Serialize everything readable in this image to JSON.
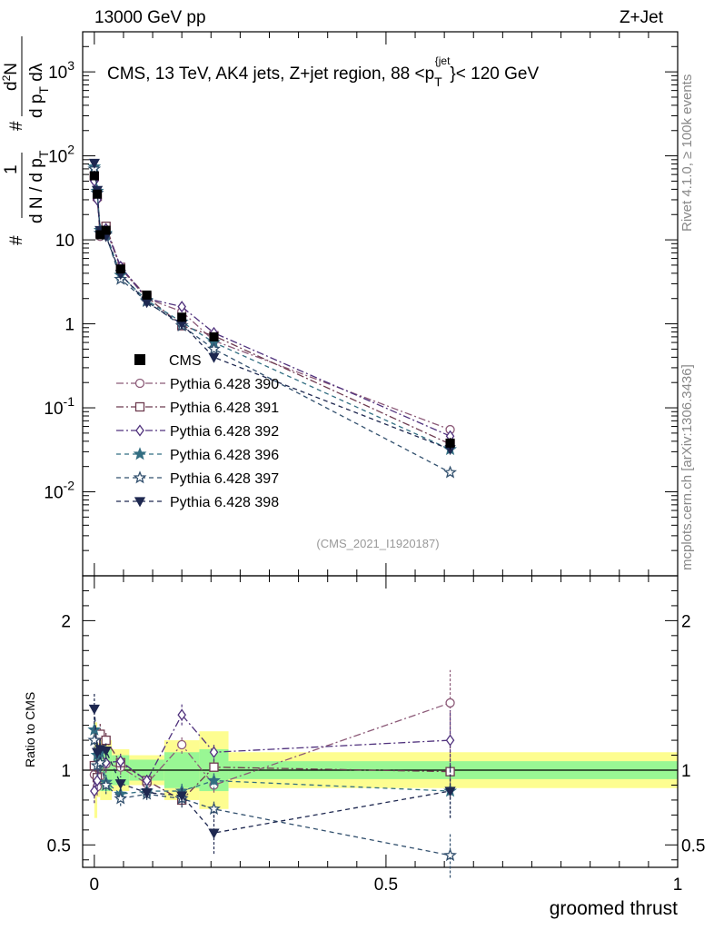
{
  "header": {
    "left": "13000 GeV pp",
    "right": "Z+Jet"
  },
  "title": "CMS, 13 TeV, AK4 jets, Z+jet region, 88 <p_T^{jet}< 120 GeV",
  "title_parts": {
    "pre": "CMS, 13 TeV, AK4 jets, Z+jet region, 88 <p",
    "sub": "T",
    "sup": "{jet",
    "post": "}< 120 GeV"
  },
  "side_labels": {
    "rivet": "Rivet 4.1.0, ≥ 100k events",
    "mcplots": "mcplots.cern.ch [arXiv:1306.3436]"
  },
  "analysis_id": "(CMS_2021_I1920187)",
  "ylabel_top": "1/dN/dp_T  d²N/dp_T dλ",
  "ylabel_bottom": "Ratio to CMS",
  "xlabel": "groomed thrust",
  "colors": {
    "band_inner": "#99f794",
    "band_outer": "#fdfd90",
    "data": "#000000"
  },
  "chart_data": {
    "type": "line",
    "x": [
      0.0,
      0.005,
      0.01,
      0.02,
      0.045,
      0.09,
      0.15,
      0.205,
      0.61
    ],
    "xlim": [
      -0.02,
      1.0
    ],
    "x_ticks": [
      "0",
      "0.5",
      "1"
    ],
    "main_ylim_log": [
      0.001,
      3000
    ],
    "main_y_ticks": [
      "10^{-2}",
      "10^{-1}",
      "1",
      "10",
      "10^{2}",
      "10^{3}"
    ],
    "ratio_ylim": [
      0.35,
      2.3
    ],
    "ratio_y_ticks": [
      "0.5",
      "1",
      "2"
    ],
    "data": {
      "name": "CMS",
      "values": [
        58,
        35,
        11.5,
        13,
        4.5,
        2.2,
        1.2,
        0.7,
        0.038
      ],
      "errors": [
        4,
        2.5,
        0.9,
        1.1,
        0.3,
        0.15,
        0.15,
        0.08,
        0.006
      ]
    },
    "ratio_bands": [
      {
        "x0": 0.0,
        "x1": 0.005,
        "inner": [
          0.9,
          1.1
        ],
        "outer": [
          0.68,
          1.32
        ]
      },
      {
        "x0": 0.005,
        "x1": 0.01,
        "inner": [
          0.88,
          1.12
        ],
        "outer": [
          0.82,
          1.18
        ]
      },
      {
        "x0": 0.01,
        "x1": 0.03,
        "inner": [
          0.86,
          1.14
        ],
        "outer": [
          0.8,
          1.2
        ]
      },
      {
        "x0": 0.03,
        "x1": 0.06,
        "inner": [
          0.9,
          1.1
        ],
        "outer": [
          0.86,
          1.14
        ]
      },
      {
        "x0": 0.06,
        "x1": 0.12,
        "inner": [
          0.93,
          1.07
        ],
        "outer": [
          0.9,
          1.1
        ]
      },
      {
        "x0": 0.12,
        "x1": 0.18,
        "inner": [
          0.88,
          1.12
        ],
        "outer": [
          0.8,
          1.2
        ]
      },
      {
        "x0": 0.18,
        "x1": 0.23,
        "inner": [
          0.86,
          1.14
        ],
        "outer": [
          0.74,
          1.26
        ]
      },
      {
        "x0": 0.23,
        "x1": 1.0,
        "inner": [
          0.94,
          1.06
        ],
        "outer": [
          0.88,
          1.12
        ]
      }
    ],
    "series": [
      {
        "name": "Pythia 6.428 390",
        "color": "#8c5a78",
        "marker": "circle-open",
        "dash": "8,3,2,3",
        "values": [
          56,
          31,
          11,
          13.5,
          4.6,
          2.0,
          1.4,
          0.63,
          0.055
        ],
        "ratio": [
          0.97,
          0.89,
          0.96,
          1.04,
          1.02,
          0.91,
          1.17,
          0.9,
          1.45
        ],
        "ratio_err": [
          0.08,
          0.06,
          0.06,
          0.06,
          0.05,
          0.04,
          0.06,
          0.05,
          0.22
        ]
      },
      {
        "name": "Pythia 6.428 391",
        "color": "#6e3c50",
        "marker": "square-open",
        "dash": "8,3,2,3",
        "values": [
          57,
          33,
          12,
          14.5,
          4.7,
          2.1,
          0.95,
          0.72,
          0.037
        ],
        "ratio": [
          1.03,
          0.95,
          1.24,
          1.2,
          1.05,
          0.93,
          0.8,
          1.02,
          0.99
        ],
        "ratio_err": [
          0.07,
          0.06,
          0.07,
          0.06,
          0.05,
          0.04,
          0.05,
          0.06,
          0.18
        ]
      },
      {
        "name": "Pythia 6.428 392",
        "color": "#50327d",
        "marker": "diamond-open",
        "dash": "8,3,2,3",
        "values": [
          50,
          30,
          13,
          13.5,
          4.8,
          2.0,
          1.6,
          0.78,
          0.046
        ],
        "ratio": [
          0.86,
          0.93,
          1.12,
          1.05,
          1.06,
          0.93,
          1.37,
          1.12,
          1.2
        ],
        "ratio_err": [
          0.08,
          0.06,
          0.07,
          0.06,
          0.05,
          0.04,
          0.07,
          0.06,
          0.2
        ]
      },
      {
        "name": "Pythia 6.428 396",
        "color": "#326e82",
        "marker": "star-filled",
        "dash": "5,4",
        "values": [
          74,
          38,
          13,
          12,
          3.8,
          1.9,
          1.05,
          0.6,
          0.032
        ],
        "ratio": [
          1.27,
          1.1,
          1.12,
          0.92,
          0.84,
          0.86,
          0.86,
          0.93,
          0.86
        ],
        "ratio_err": [
          0.09,
          0.07,
          0.07,
          0.06,
          0.05,
          0.04,
          0.06,
          0.06,
          0.18
        ]
      },
      {
        "name": "Pythia 6.428 397",
        "color": "#32506e",
        "marker": "star-open",
        "dash": "5,4",
        "values": [
          70,
          36,
          12,
          11.5,
          3.4,
          1.85,
          0.95,
          0.5,
          0.017
        ],
        "ratio": [
          1.2,
          1.03,
          1.05,
          0.9,
          0.81,
          0.84,
          0.81,
          0.74,
          0.43
        ],
        "ratio_err": [
          0.09,
          0.07,
          0.07,
          0.06,
          0.05,
          0.04,
          0.06,
          0.06,
          0.15
        ]
      },
      {
        "name": "Pythia 6.428 398",
        "color": "#1e2850",
        "marker": "triangle-down-filled",
        "dash": "5,4",
        "values": [
          82,
          39,
          13,
          11,
          3.9,
          1.8,
          1.0,
          0.4,
          0.032
        ],
        "ratio": [
          1.41,
          1.12,
          1.14,
          1.13,
          0.91,
          0.85,
          0.83,
          0.58,
          0.86
        ],
        "ratio_err": [
          0.1,
          0.07,
          0.07,
          0.06,
          0.05,
          0.04,
          0.06,
          0.14,
          0.18
        ]
      }
    ]
  }
}
